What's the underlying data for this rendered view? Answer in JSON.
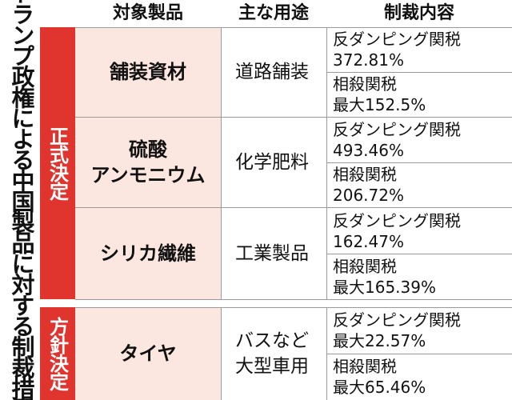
{
  "side_title": "トランプ政権による中国製品に対する制裁措置",
  "headers": {
    "product": "対象製品",
    "use": "主な用途",
    "sanction": "制裁内容"
  },
  "groups": [
    {
      "label": "正式決定",
      "rows": [
        {
          "product": "舗装資材",
          "use": "道路舗装",
          "anti_dumping": {
            "label": "反ダンピング関税",
            "value": "372.81%"
          },
          "countervailing": {
            "label": "相殺関税",
            "value": "最大152.5%"
          }
        },
        {
          "product": "硫酸アンモニウム",
          "product_line1": "硫酸",
          "product_line2": "アンモニウム",
          "use": "化学肥料",
          "anti_dumping": {
            "label": "反ダンピング関税",
            "value": "493.46%"
          },
          "countervailing": {
            "label": "相殺関税",
            "value": "206.72%"
          }
        },
        {
          "product": "シリカ繊維",
          "use": "工業製品",
          "anti_dumping": {
            "label": "反ダンピング関税",
            "value": "162.47%"
          },
          "countervailing": {
            "label": "相殺関税",
            "value": "最大165.39%"
          }
        }
      ]
    },
    {
      "label": "方針決定",
      "rows": [
        {
          "product": "タイヤ",
          "use_line1": "バスなど",
          "use_line2": "大型車用",
          "anti_dumping": {
            "label": "反ダンピング関税",
            "value": "最大22.57%"
          },
          "countervailing": {
            "label": "相殺関税",
            "value": "最大65.46%"
          }
        }
      ]
    }
  ]
}
